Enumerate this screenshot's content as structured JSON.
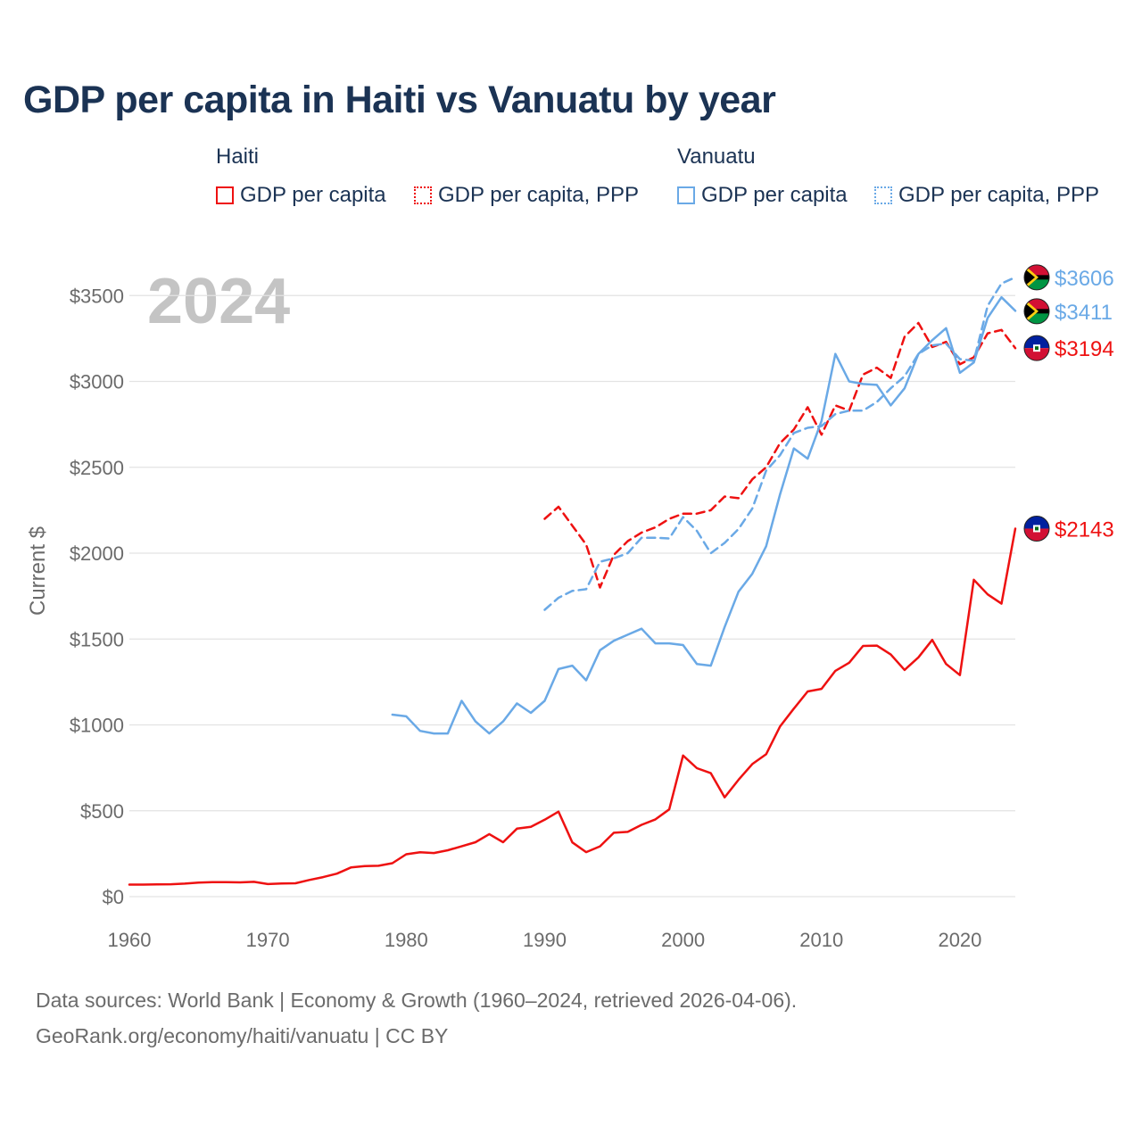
{
  "title": "GDP per capita in Haiti vs Vanuatu by year",
  "legend": {
    "haiti_title": "Haiti",
    "vanuatu_title": "Vanuatu",
    "gdp_label": "GDP per capita",
    "ppp_label": "GDP per capita, PPP"
  },
  "footer": {
    "line1": "Data sources: World Bank | Economy & Growth (1960–2024, retrieved 2026-04-06).",
    "line2": "GeoRank.org/economy/haiti/vanuatu | CC BY"
  },
  "colors": {
    "haiti": "#ee1111",
    "vanuatu": "#6aa9e6",
    "grid": "#e3e3e3",
    "axis_text": "#6b6b6b",
    "year_watermark": "#c4c4c4"
  },
  "chart_data": {
    "type": "line",
    "title": "GDP per capita in Haiti vs Vanuatu by year",
    "xlabel": "",
    "ylabel": "Current $",
    "xlim": [
      1960,
      2024
    ],
    "ylim": [
      0,
      3700
    ],
    "x_ticks": [
      1960,
      1970,
      1980,
      1990,
      2000,
      2010,
      2020
    ],
    "y_ticks": [
      0,
      500,
      1000,
      1500,
      2000,
      2500,
      3000,
      3500
    ],
    "y_tick_labels": [
      "$0",
      "$500",
      "$1000",
      "$1500",
      "$2000",
      "$2500",
      "$3000",
      "$3500"
    ],
    "year_label": "2024",
    "series": [
      {
        "name": "Haiti GDP per capita",
        "country": "haiti",
        "dashed": false,
        "end_label": "$2143",
        "start_year": 1960,
        "values": [
          70,
          70,
          71,
          72,
          76,
          82,
          84,
          84,
          83,
          86,
          73,
          77,
          78,
          97,
          114,
          134,
          170,
          178,
          180,
          195,
          247,
          258,
          254,
          270,
          293,
          317,
          364,
          317,
          396,
          407,
          448,
          495,
          316,
          259,
          293,
          372,
          377,
          418,
          450,
          508,
          822,
          748,
          719,
          578,
          680,
          772,
          829,
          990,
          1095,
          1195,
          1210,
          1315,
          1362,
          1460,
          1462,
          1410,
          1320,
          1393,
          1495,
          1355,
          1290,
          1845,
          1760,
          1706,
          2143
        ]
      },
      {
        "name": "Haiti GDP per capita, PPP",
        "country": "haiti",
        "dashed": true,
        "end_label": "$3194",
        "start_year": 1990,
        "values": [
          2200,
          2270,
          2160,
          2050,
          1800,
          1990,
          2070,
          2120,
          2150,
          2200,
          2230,
          2230,
          2250,
          2330,
          2320,
          2430,
          2500,
          2640,
          2720,
          2850,
          2690,
          2860,
          2830,
          3040,
          3080,
          3020,
          3260,
          3340,
          3200,
          3230,
          3100,
          3140,
          3280,
          3300,
          3194
        ]
      },
      {
        "name": "Vanuatu GDP per capita",
        "country": "vanuatu",
        "dashed": false,
        "end_label": "$3411",
        "start_year": 1979,
        "values": [
          1060,
          1050,
          965,
          950,
          950,
          1140,
          1020,
          950,
          1020,
          1125,
          1070,
          1140,
          1325,
          1345,
          1260,
          1435,
          1490,
          1525,
          1560,
          1475,
          1475,
          1465,
          1355,
          1345,
          1570,
          1775,
          1880,
          2040,
          2340,
          2610,
          2550,
          2770,
          3160,
          3000,
          2985,
          2980,
          2860,
          2960,
          3160,
          3240,
          3310,
          3050,
          3110,
          3370,
          3490,
          3411
        ]
      },
      {
        "name": "Vanuatu GDP per capita, PPP",
        "country": "vanuatu",
        "dashed": true,
        "end_label": "$3606",
        "start_year": 1990,
        "values": [
          1670,
          1740,
          1780,
          1790,
          1950,
          1970,
          2000,
          2090,
          2090,
          2085,
          2210,
          2130,
          2000,
          2060,
          2140,
          2260,
          2480,
          2570,
          2700,
          2730,
          2740,
          2810,
          2830,
          2830,
          2880,
          2960,
          3030,
          3160,
          3210,
          3220,
          3130,
          3120,
          3440,
          3570,
          3606
        ]
      }
    ]
  }
}
